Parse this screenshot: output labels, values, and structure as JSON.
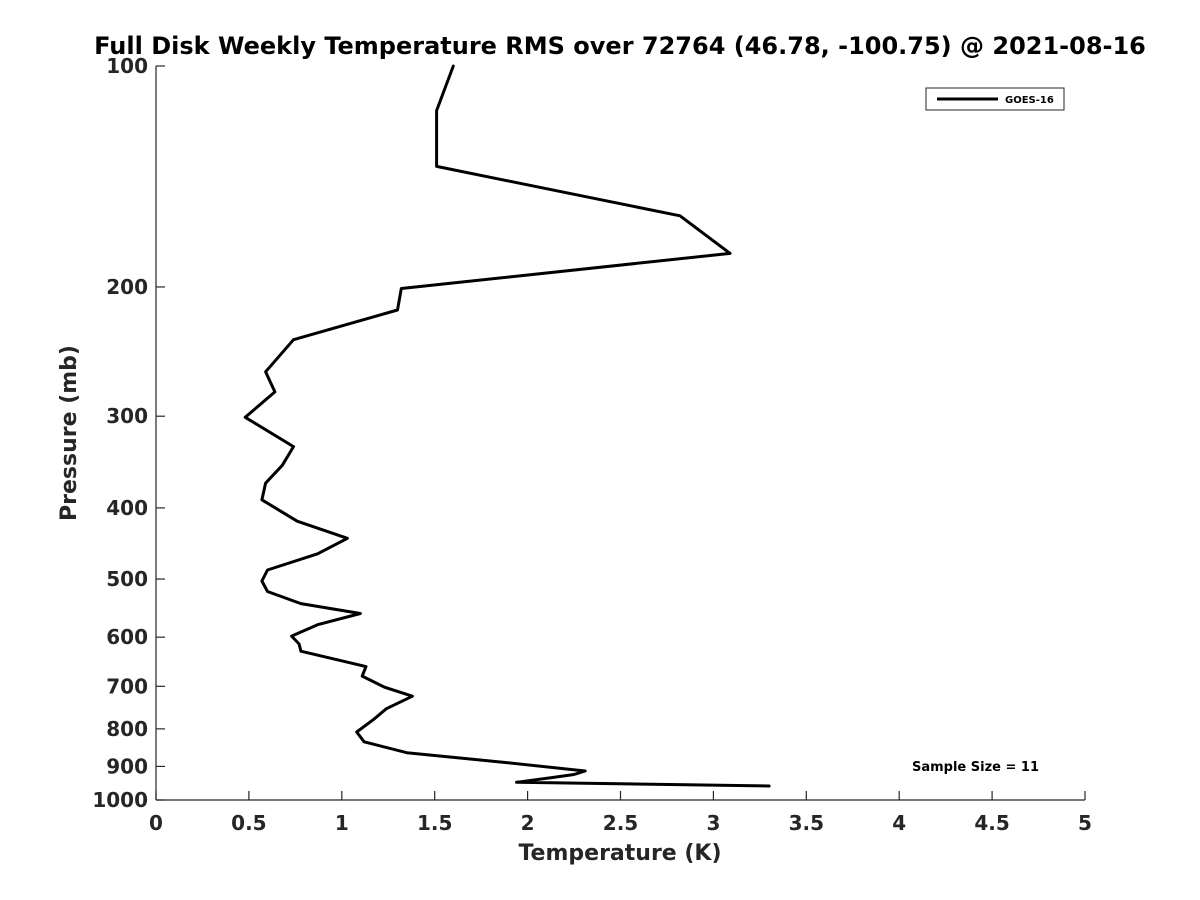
{
  "chart_data": {
    "type": "line",
    "title": "Full Disk Weekly Temperature RMS over 72764 (46.78, -100.75) @ 2021-08-16",
    "xlabel": "Temperature (K)",
    "ylabel": "Pressure (mb)",
    "xlim": [
      0,
      5
    ],
    "ylim": [
      100,
      1000
    ],
    "y_scale": "log",
    "y_reversed": true,
    "x_ticks": [
      "0",
      "0.5",
      "1",
      "1.5",
      "2",
      "2.5",
      "3",
      "3.5",
      "4",
      "4.5",
      "5"
    ],
    "y_ticks": [
      "100",
      "200",
      "300",
      "400",
      "500",
      "600",
      "700",
      "800",
      "900",
      "1000"
    ],
    "grid": false,
    "legend": {
      "position": "top-right",
      "entries": [
        "GOES-16"
      ]
    },
    "annotation": "Sample Size = 11",
    "series_color": "#000000",
    "series": [
      {
        "name": "GOES-16",
        "x": [
          1.6,
          1.51,
          1.51,
          1.51,
          2.82,
          3.09,
          1.32,
          1.3,
          0.74,
          0.59,
          0.64,
          0.48,
          0.74,
          0.68,
          0.59,
          0.57,
          0.76,
          1.03,
          0.87,
          0.6,
          0.57,
          0.6,
          0.78,
          1.1,
          0.87,
          0.73,
          0.77,
          0.78,
          1.13,
          1.11,
          1.23,
          1.38,
          1.24,
          1.17,
          1.08,
          1.12,
          1.35,
          1.88,
          2.31,
          2.25,
          2.12,
          1.94,
          3.3
        ],
        "y": [
          100,
          115,
          125,
          137,
          160,
          180,
          201,
          215,
          236,
          261,
          278,
          301,
          330,
          350,
          370,
          390,
          417,
          440,
          462,
          486,
          503,
          520,
          540,
          557,
          577,
          598,
          613,
          627,
          658,
          678,
          702,
          722,
          751,
          777,
          808,
          833,
          862,
          889,
          913,
          923,
          933,
          946,
          957
        ]
      }
    ]
  }
}
